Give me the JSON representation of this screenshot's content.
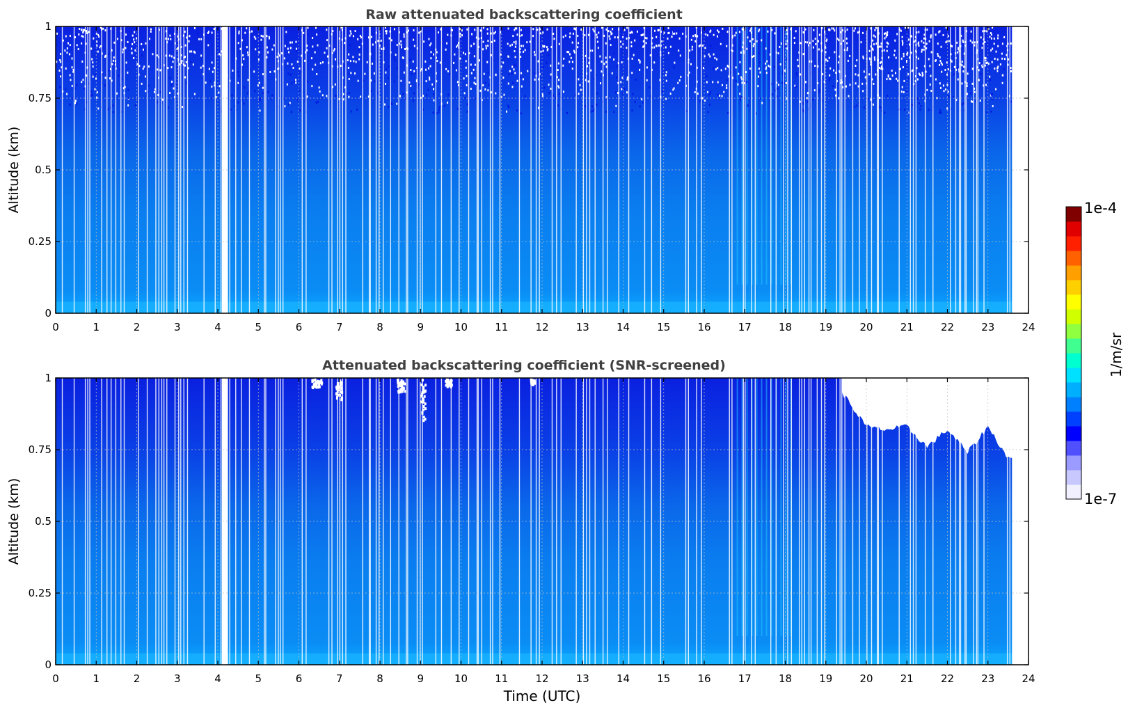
{
  "chart_data": [
    {
      "type": "heatmap",
      "title": "Raw attenuated backscattering coefficient",
      "xlabel": "",
      "ylabel": "Altitude (km)",
      "xlim": [
        0,
        24
      ],
      "ylim": [
        0,
        1
      ],
      "x_ticks": [
        "0",
        "1",
        "2",
        "3",
        "4",
        "5",
        "6",
        "7",
        "8",
        "9",
        "10",
        "11",
        "12",
        "13",
        "14",
        "15",
        "16",
        "17",
        "18",
        "19",
        "20",
        "21",
        "22",
        "23",
        "24"
      ],
      "y_ticks": [
        "0",
        "0.25",
        "0.5",
        "0.75",
        "1"
      ],
      "grid": true,
      "data_extent_hours": [
        0,
        23.6
      ],
      "missing_gap_hours": [
        4.1,
        4.25
      ],
      "noise_above_km": 0.7,
      "colorscale": "jet-log"
    },
    {
      "type": "heatmap",
      "title": "Attenuated backscattering coefficient (SNR-screened)",
      "xlabel": "Time (UTC)",
      "ylabel": "Altitude (km)",
      "xlim": [
        0,
        24
      ],
      "ylim": [
        0,
        1
      ],
      "x_ticks": [
        "0",
        "1",
        "2",
        "3",
        "4",
        "5",
        "6",
        "7",
        "8",
        "9",
        "10",
        "11",
        "12",
        "13",
        "14",
        "15",
        "16",
        "17",
        "18",
        "19",
        "20",
        "21",
        "22",
        "23",
        "24"
      ],
      "y_ticks": [
        "0",
        "0.25",
        "0.5",
        "0.75",
        "1"
      ],
      "grid": true,
      "data_extent_hours": [
        0,
        23.6
      ],
      "missing_gap_hours": [
        4.1,
        4.25
      ],
      "screened_top_km": [
        [
          19.4,
          0.95
        ],
        [
          20,
          0.83
        ],
        [
          20.5,
          0.82
        ],
        [
          21,
          0.83
        ],
        [
          21.5,
          0.76
        ],
        [
          22,
          0.82
        ],
        [
          22.5,
          0.74
        ],
        [
          23,
          0.83
        ],
        [
          23.5,
          0.72
        ]
      ],
      "colorscale": "jet-log"
    }
  ],
  "colorbar": {
    "max_label": "1e-4",
    "min_label": "1e-7",
    "unit_label": "1/m/sr",
    "colors": [
      "#f0f0ff",
      "#c8c8ff",
      "#9a9aff",
      "#5050ff",
      "#0000ff",
      "#0040ff",
      "#0080ff",
      "#00b0ff",
      "#00e0ff",
      "#00ffd0",
      "#40ff90",
      "#90ff40",
      "#d0ff00",
      "#ffff00",
      "#ffd000",
      "#ffa000",
      "#ff6000",
      "#ff2000",
      "#e00000",
      "#800000"
    ]
  }
}
